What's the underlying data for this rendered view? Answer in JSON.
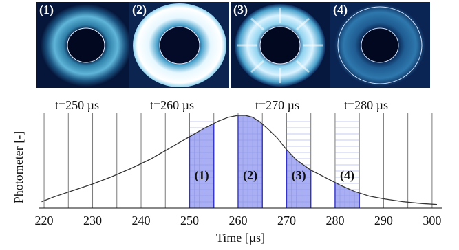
{
  "panels": [
    {
      "label": "(1)",
      "time": "t=250 µs",
      "style": "dim-ring"
    },
    {
      "label": "(2)",
      "time": "t=260 µs",
      "style": "bright-ring"
    },
    {
      "label": "(3)",
      "time": "t=270 µs",
      "style": "spoke-ring"
    },
    {
      "label": "(4)",
      "time": "t=280 µs",
      "style": "faint-ring"
    }
  ],
  "chart_data": {
    "type": "line",
    "xlabel": "Time [µs]",
    "ylabel": "Photometer [-]",
    "xlim": [
      219,
      302
    ],
    "ylim": [
      0,
      1
    ],
    "x_ticks": [
      220,
      230,
      240,
      250,
      260,
      270,
      280,
      290,
      300
    ],
    "grid": "vertical every 5 µs",
    "series": [
      {
        "x": [
          219.5,
          222,
          226,
          230,
          234,
          238,
          242,
          246,
          250,
          253,
          256,
          258,
          260,
          261.5,
          263,
          264.5,
          266,
          268,
          270,
          272,
          275,
          278,
          281,
          284,
          287,
          290,
          294,
          298,
          301
        ],
        "y": [
          0.07,
          0.12,
          0.19,
          0.26,
          0.34,
          0.43,
          0.53,
          0.65,
          0.77,
          0.86,
          0.94,
          0.98,
          1.0,
          1.0,
          0.98,
          0.93,
          0.86,
          0.76,
          0.63,
          0.52,
          0.41,
          0.33,
          0.25,
          0.18,
          0.13,
          0.1,
          0.07,
          0.05,
          0.04
        ]
      }
    ],
    "bands": [
      {
        "label": "(1)",
        "x0": 250,
        "x1": 255
      },
      {
        "label": "(2)",
        "x0": 260,
        "x1": 265
      },
      {
        "label": "(3)",
        "x0": 270,
        "x1": 275
      },
      {
        "label": "(4)",
        "x0": 280,
        "x1": 285
      }
    ],
    "colors": {
      "band_fill": "#a9aff2",
      "band_edge": "#3333cc",
      "line": "#333333",
      "grid": "#7a7a7a"
    }
  }
}
